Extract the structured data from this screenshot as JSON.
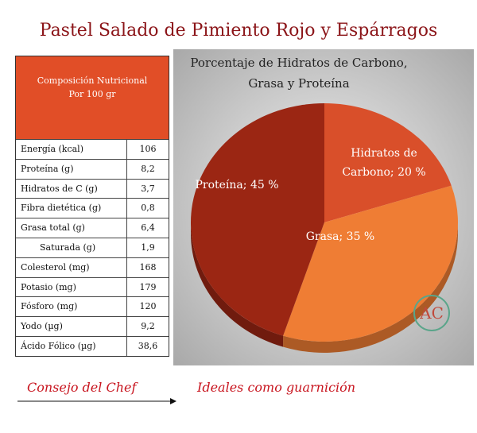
{
  "title": "Pastel Salado de Pimiento Rojo y Espárragos",
  "table": {
    "header_line1": "Composición Nutricional",
    "header_line2": "Por 100 gr",
    "rows": [
      {
        "label": "Energía (kcal)",
        "value": "106"
      },
      {
        "label": "Proteína (g)",
        "value": "8,2"
      },
      {
        "label": "Hidratos de C (g)",
        "value": "3,7"
      },
      {
        "label": "Fibra dietética (g)",
        "value": "0,8"
      },
      {
        "label": "Grasa total (g)",
        "value": "6,4"
      },
      {
        "label": "Saturada (g)",
        "value": "1,9"
      },
      {
        "label": "Colesterol (mg)",
        "value": "168"
      },
      {
        "label": "Potasio (mg)",
        "value": "179"
      },
      {
        "label": "Fósforo (mg)",
        "value": "120"
      },
      {
        "label": "Yodo (µg)",
        "value": "9,2"
      },
      {
        "label": "Ácido Fólico (µg)",
        "value": "38,6"
      }
    ]
  },
  "chart_data": {
    "type": "pie",
    "title_line1": "Porcentaje de Hidratos de Carbono,",
    "title_line2": "Grasa y Proteína",
    "slices": [
      {
        "name": "Hidratos de Carbono",
        "value": 20,
        "label_line1": "Hidratos de",
        "label_line2": "Carbono; 20 %",
        "color": "#d94f2a"
      },
      {
        "name": "Grasa",
        "value": 35,
        "label_line1": "Grasa; 35 %",
        "label_line2": "",
        "color": "#ef7d34"
      },
      {
        "name": "Proteína",
        "value": 45,
        "label_line1": "Proteína; 45 %",
        "label_line2": "",
        "color": "#9b2613"
      }
    ]
  },
  "logo_text": "AC",
  "footer": {
    "left": "Consejo del Chef",
    "right": "Ideales como guarnición"
  },
  "colors": {
    "title": "#8b1418",
    "table_header": "#e14e27",
    "footer": "#c8141e",
    "logo": "#5aa58a"
  }
}
